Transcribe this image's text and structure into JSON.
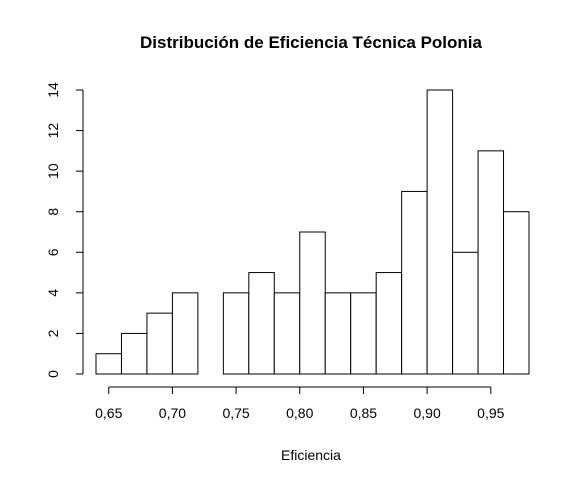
{
  "chart_data": {
    "type": "bar",
    "title": "Distribución de Eficiencia Técnica Polonia",
    "xlabel": "Eficiencia",
    "ylabel": "",
    "bin_width": 0.02,
    "bins": [
      {
        "x0": 0.64,
        "x1": 0.66,
        "count": 1
      },
      {
        "x0": 0.66,
        "x1": 0.68,
        "count": 2
      },
      {
        "x0": 0.68,
        "x1": 0.7,
        "count": 3
      },
      {
        "x0": 0.7,
        "x1": 0.72,
        "count": 4
      },
      {
        "x0": 0.72,
        "x1": 0.74,
        "count": 0
      },
      {
        "x0": 0.74,
        "x1": 0.76,
        "count": 4
      },
      {
        "x0": 0.76,
        "x1": 0.78,
        "count": 5
      },
      {
        "x0": 0.78,
        "x1": 0.8,
        "count": 4
      },
      {
        "x0": 0.8,
        "x1": 0.82,
        "count": 7
      },
      {
        "x0": 0.82,
        "x1": 0.84,
        "count": 4
      },
      {
        "x0": 0.84,
        "x1": 0.86,
        "count": 4
      },
      {
        "x0": 0.86,
        "x1": 0.88,
        "count": 5
      },
      {
        "x0": 0.88,
        "x1": 0.9,
        "count": 9
      },
      {
        "x0": 0.9,
        "x1": 0.92,
        "count": 14
      },
      {
        "x0": 0.92,
        "x1": 0.94,
        "count": 6
      },
      {
        "x0": 0.94,
        "x1": 0.96,
        "count": 11
      },
      {
        "x0": 0.96,
        "x1": 0.98,
        "count": 8
      }
    ],
    "xlim": [
      0.64,
      0.98
    ],
    "ylim": [
      0,
      14
    ],
    "x_ticks": [
      0.65,
      0.7,
      0.75,
      0.8,
      0.85,
      0.9,
      0.95
    ],
    "x_tick_labels": [
      "0,65",
      "0,70",
      "0,75",
      "0,80",
      "0,85",
      "0,90",
      "0,95"
    ],
    "y_ticks": [
      0,
      2,
      4,
      6,
      8,
      10,
      12,
      14
    ],
    "y_tick_labels": [
      "0",
      "2",
      "4",
      "6",
      "8",
      "10",
      "12",
      "14"
    ],
    "grid": false,
    "legend": "none",
    "colors": {
      "bar_fill": "#ffffff",
      "bar_stroke": "#000000"
    }
  }
}
